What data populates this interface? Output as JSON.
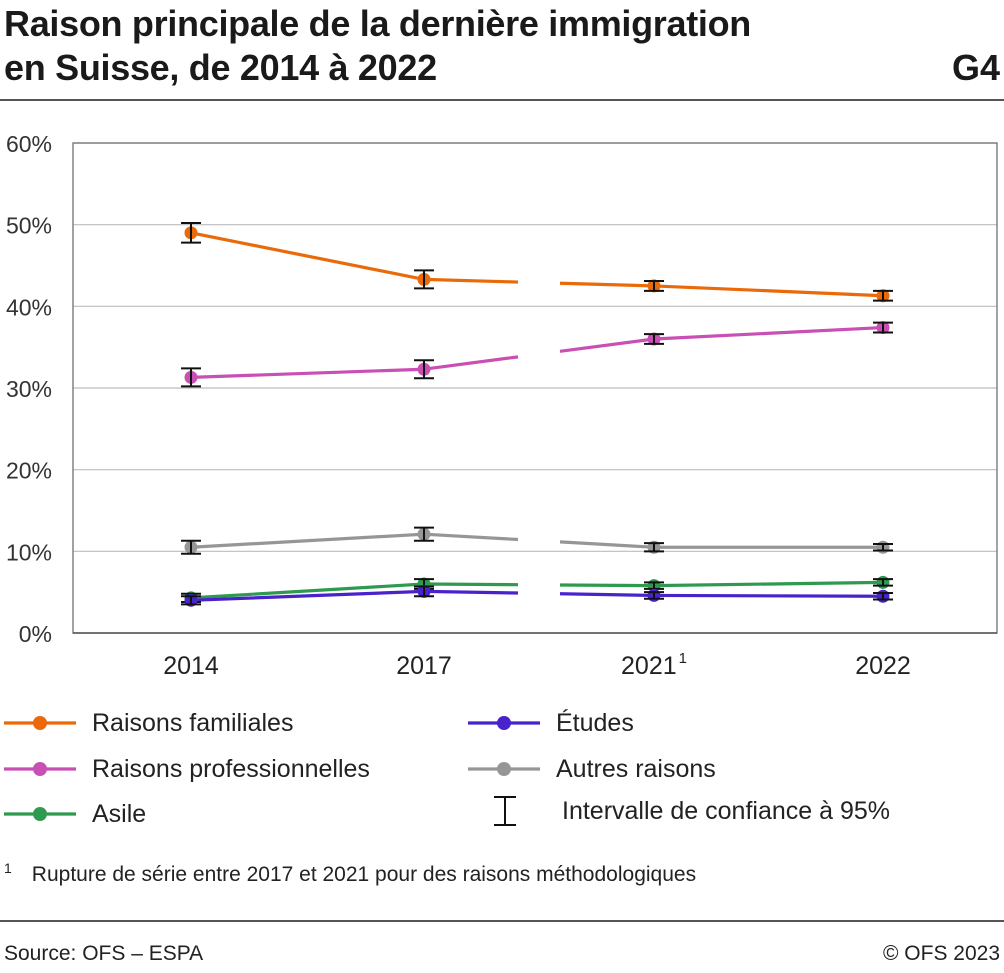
{
  "header": {
    "title_line1": "Raison principale de la dernière immigration",
    "title_line2": "en Suisse, de 2014 à 2022",
    "code": "G4"
  },
  "chart_data": {
    "type": "line",
    "categories": [
      "2014",
      "2017",
      "2021",
      "2022"
    ],
    "category_superscripts": [
      "",
      "",
      "1",
      ""
    ],
    "y_ticks": [
      "0%",
      "10%",
      "20%",
      "30%",
      "40%",
      "50%",
      "60%"
    ],
    "ylim": [
      0,
      60
    ],
    "unit": "%",
    "grid": true,
    "series_break": "between 2017 and 2021",
    "series": [
      {
        "name": "Raisons familiales",
        "color": "#ea6a0a",
        "values": [
          49.0,
          43.3,
          42.5,
          41.3
        ],
        "ci": [
          1.2,
          1.1,
          0.6,
          0.6
        ]
      },
      {
        "name": "Raisons professionnelles",
        "color": "#c84fb3",
        "values": [
          31.3,
          32.3,
          36.0,
          37.4
        ],
        "ci": [
          1.1,
          1.1,
          0.6,
          0.6
        ]
      },
      {
        "name": "Autres raisons",
        "color": "#969696",
        "values": [
          10.5,
          12.1,
          10.5,
          10.5
        ],
        "ci": [
          0.8,
          0.8,
          0.5,
          0.4
        ]
      },
      {
        "name": "Asile",
        "color": "#2e9a4f",
        "values": [
          4.3,
          6.0,
          5.8,
          6.2
        ],
        "ci": [
          0.5,
          0.6,
          0.4,
          0.4
        ]
      },
      {
        "name": "Études",
        "color": "#4a22cc",
        "values": [
          4.0,
          5.1,
          4.6,
          4.5
        ],
        "ci": [
          0.5,
          0.6,
          0.4,
          0.4
        ]
      }
    ]
  },
  "legend": {
    "ci_label": "Intervalle de confiance à 95%",
    "order": [
      "Raisons familiales",
      "Études",
      "Raisons professionnelles",
      "Autres raisons",
      "Asile"
    ]
  },
  "footnote": {
    "mark": "1",
    "text": "Rupture de série entre 2017 et 2021 pour des raisons méthodologiques"
  },
  "footer": {
    "source": "Source: OFS – ESPA",
    "copyright": "© OFS 2023"
  }
}
